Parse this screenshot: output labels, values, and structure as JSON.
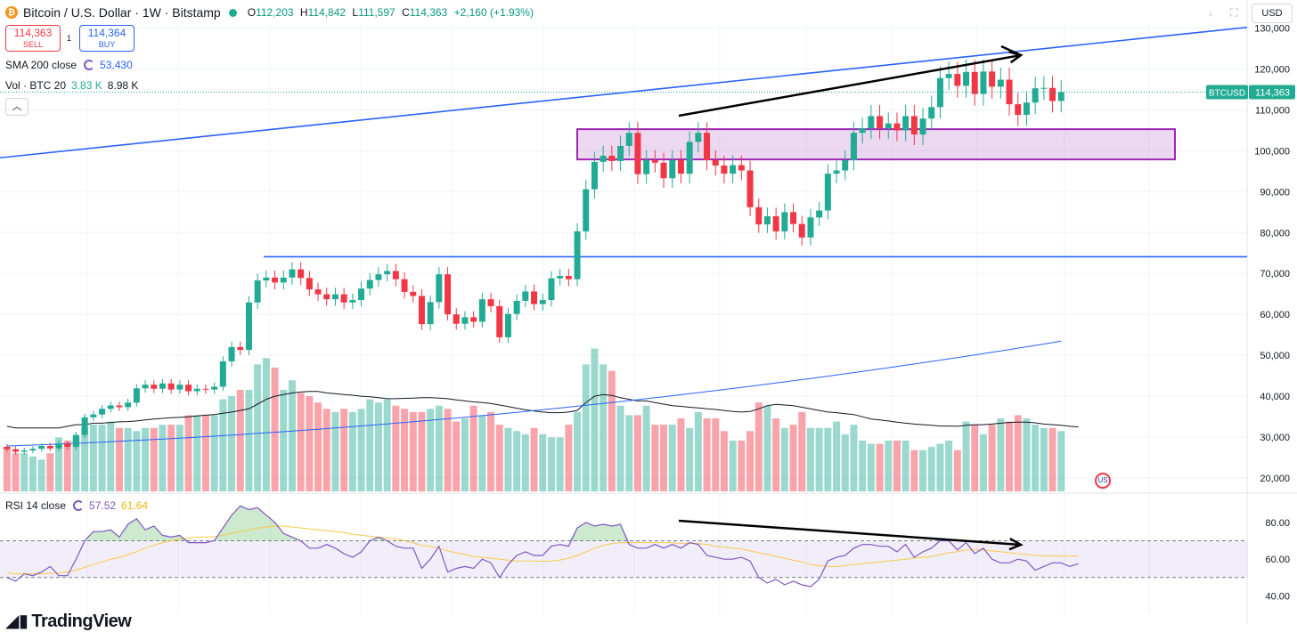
{
  "header": {
    "symbol_title": "Bitcoin / U.S. Dollar · 1W · Bitstamp",
    "open_label": "O",
    "open": "112,203",
    "high_label": "H",
    "high": "114,842",
    "low_label": "L",
    "low": "111,597",
    "close_label": "C",
    "close": "114,363",
    "change": "+2,160 (+1.93%)",
    "currency": "USD"
  },
  "trade": {
    "sell_price": "114,363",
    "sell_label": "SELL",
    "buy_price": "114,364",
    "buy_label": "BUY",
    "spread": "1"
  },
  "indicators": {
    "sma_label": "SMA 200 close",
    "sma_value": "53,430",
    "vol_label": "Vol · BTC 20",
    "vol_value": "3.83 K",
    "vol_ma_value": "8.98 K",
    "rsi_label": "RSI 14 close",
    "rsi_value": "57.52",
    "rsi_ma_value": "61.64"
  },
  "brand": {
    "name": "TradingView"
  },
  "colors": {
    "up": "#22ab94",
    "down": "#f23645",
    "trend": "#2962ff",
    "rsi": "#7e57c2",
    "rsi_ma": "#f7c948",
    "zone": "#9c27b0"
  },
  "chart_data": {
    "type": "candlestick",
    "title": "Bitcoin / U.S. Dollar · 1W · Bitstamp",
    "y_axis_ticks": [
      "130,000",
      "120,000",
      "110,000",
      "100,000",
      "90,000",
      "80,000",
      "70,000",
      "60,000",
      "50,000",
      "40,000",
      "30,000",
      "20,000"
    ],
    "price_range": [
      16700,
      130800
    ],
    "last_price_label": "BTCUSD",
    "last_price": "114,363",
    "candles": [
      {
        "o": 27600,
        "c": 27000
      },
      {
        "o": 27000,
        "c": 26400
      },
      {
        "o": 26400,
        "c": 26700
      },
      {
        "o": 26700,
        "c": 27100
      },
      {
        "o": 27100,
        "c": 27800
      },
      {
        "o": 27800,
        "c": 27200
      },
      {
        "o": 27200,
        "c": 28400
      },
      {
        "o": 28400,
        "c": 27600
      },
      {
        "o": 27600,
        "c": 30500
      },
      {
        "o": 30500,
        "c": 34800
      },
      {
        "o": 34800,
        "c": 35500
      },
      {
        "o": 35500,
        "c": 36900
      },
      {
        "o": 36900,
        "c": 37700
      },
      {
        "o": 37700,
        "c": 37300
      },
      {
        "o": 37300,
        "c": 38400
      },
      {
        "o": 38400,
        "c": 41900
      },
      {
        "o": 41900,
        "c": 42800
      },
      {
        "o": 42800,
        "c": 41800
      },
      {
        "o": 41800,
        "c": 43100
      },
      {
        "o": 43100,
        "c": 41600
      },
      {
        "o": 41600,
        "c": 42800
      },
      {
        "o": 42800,
        "c": 41200
      },
      {
        "o": 41200,
        "c": 41800
      },
      {
        "o": 41800,
        "c": 41600
      },
      {
        "o": 41600,
        "c": 42300
      },
      {
        "o": 42300,
        "c": 48500
      },
      {
        "o": 48500,
        "c": 52000
      },
      {
        "o": 52000,
        "c": 51300
      },
      {
        "o": 51300,
        "c": 62900
      },
      {
        "o": 62900,
        "c": 68300
      },
      {
        "o": 68300,
        "c": 69000
      },
      {
        "o": 69000,
        "c": 67800
      },
      {
        "o": 67800,
        "c": 69000
      },
      {
        "o": 69000,
        "c": 71000
      },
      {
        "o": 71000,
        "c": 68900
      },
      {
        "o": 68900,
        "c": 66100
      },
      {
        "o": 66100,
        "c": 64900
      },
      {
        "o": 64900,
        "c": 63700
      },
      {
        "o": 63700,
        "c": 64900
      },
      {
        "o": 64900,
        "c": 62900
      },
      {
        "o": 62900,
        "c": 63500
      },
      {
        "o": 63500,
        "c": 66300
      },
      {
        "o": 66300,
        "c": 68400
      },
      {
        "o": 68400,
        "c": 69800
      },
      {
        "o": 69800,
        "c": 70600
      },
      {
        "o": 70600,
        "c": 68600
      },
      {
        "o": 68600,
        "c": 65500
      },
      {
        "o": 65500,
        "c": 64500
      },
      {
        "o": 64500,
        "c": 57600
      },
      {
        "o": 57600,
        "c": 63000
      },
      {
        "o": 63000,
        "c": 69800
      },
      {
        "o": 69800,
        "c": 60000
      },
      {
        "o": 60000,
        "c": 57700
      },
      {
        "o": 57700,
        "c": 59300
      },
      {
        "o": 59300,
        "c": 58200
      },
      {
        "o": 58200,
        "c": 63700
      },
      {
        "o": 63700,
        "c": 62000
      },
      {
        "o": 62000,
        "c": 54400
      },
      {
        "o": 54400,
        "c": 60100
      },
      {
        "o": 60100,
        "c": 63300
      },
      {
        "o": 63300,
        "c": 65600
      },
      {
        "o": 65600,
        "c": 62500
      },
      {
        "o": 62500,
        "c": 63500
      },
      {
        "o": 63500,
        "c": 68800
      },
      {
        "o": 68800,
        "c": 69400
      },
      {
        "o": 69400,
        "c": 68600
      },
      {
        "o": 68600,
        "c": 80300
      },
      {
        "o": 80300,
        "c": 90600
      },
      {
        "o": 90600,
        "c": 97300
      },
      {
        "o": 97300,
        "c": 98800
      },
      {
        "o": 98800,
        "c": 97500
      },
      {
        "o": 97500,
        "c": 101200
      },
      {
        "o": 101200,
        "c": 104400
      },
      {
        "o": 104400,
        "c": 94300
      },
      {
        "o": 94300,
        "c": 97700
      },
      {
        "o": 97700,
        "c": 97100
      },
      {
        "o": 97100,
        "c": 93300
      },
      {
        "o": 93300,
        "c": 97700
      },
      {
        "o": 97700,
        "c": 94400
      },
      {
        "o": 94400,
        "c": 102200
      },
      {
        "o": 102200,
        "c": 104400
      },
      {
        "o": 104400,
        "c": 97700
      },
      {
        "o": 97700,
        "c": 96400
      },
      {
        "o": 96400,
        "c": 94400
      },
      {
        "o": 94400,
        "c": 96500
      },
      {
        "o": 96500,
        "c": 95200
      },
      {
        "o": 95200,
        "c": 86200
      },
      {
        "o": 86200,
        "c": 82000
      },
      {
        "o": 82000,
        "c": 84000
      },
      {
        "o": 84000,
        "c": 80300
      },
      {
        "o": 80300,
        "c": 85000
      },
      {
        "o": 85000,
        "c": 82100
      },
      {
        "o": 82100,
        "c": 78800
      },
      {
        "o": 78800,
        "c": 83700
      },
      {
        "o": 83700,
        "c": 85400
      },
      {
        "o": 85400,
        "c": 94400
      },
      {
        "o": 94400,
        "c": 95200
      },
      {
        "o": 95200,
        "c": 97700
      },
      {
        "o": 97700,
        "c": 104400
      },
      {
        "o": 104400,
        "c": 105500
      },
      {
        "o": 105500,
        "c": 108500
      },
      {
        "o": 108500,
        "c": 105500
      },
      {
        "o": 105500,
        "c": 106700
      },
      {
        "o": 106700,
        "c": 105000
      },
      {
        "o": 105000,
        "c": 108500
      },
      {
        "o": 108500,
        "c": 104000
      },
      {
        "o": 104000,
        "c": 107900
      },
      {
        "o": 107900,
        "c": 110700
      },
      {
        "o": 110700,
        "c": 117800
      },
      {
        "o": 117800,
        "c": 118800
      },
      {
        "o": 118800,
        "c": 115900
      },
      {
        "o": 115900,
        "c": 119300
      },
      {
        "o": 119300,
        "c": 113900
      },
      {
        "o": 113900,
        "c": 119400
      },
      {
        "o": 119400,
        "c": 115700
      },
      {
        "o": 115700,
        "c": 117400
      },
      {
        "o": 117400,
        "c": 111400
      },
      {
        "o": 111400,
        "c": 108800
      },
      {
        "o": 108800,
        "c": 111800
      },
      {
        "o": 111800,
        "c": 115300
      },
      {
        "o": 115300,
        "c": 115400
      },
      {
        "o": 115400,
        "c": 112200
      },
      {
        "o": 112200,
        "c": 114363
      }
    ],
    "volume_series": "relative weekly volume (same length as candles)",
    "volume": [
      14,
      12,
      12,
      11,
      10,
      12,
      17,
      16,
      17,
      20,
      21,
      21,
      22,
      20,
      20,
      19,
      20,
      20,
      21,
      21,
      21,
      24,
      24,
      24,
      24,
      29,
      30,
      32,
      32,
      40,
      42,
      39,
      32,
      35,
      31,
      30,
      28,
      26,
      25,
      26,
      25,
      26,
      29,
      28,
      29,
      27,
      26,
      25,
      25,
      26,
      27,
      26,
      22,
      23,
      27,
      24,
      25,
      21,
      20,
      19,
      18,
      20,
      18,
      17,
      17,
      21,
      25,
      40,
      45,
      40,
      38,
      27,
      24,
      24,
      27,
      21,
      21,
      21,
      23,
      20,
      25,
      23,
      23,
      19,
      16,
      16,
      19,
      28,
      27,
      23,
      20,
      21,
      25,
      20,
      20,
      20,
      22,
      18,
      21,
      16,
      15,
      15,
      16,
      16,
      16,
      13,
      13,
      14,
      15,
      16,
      13,
      22,
      21,
      18,
      21,
      23,
      22,
      24,
      23,
      21,
      20,
      20,
      19,
      20,
      21
    ],
    "volume_ma": [
      20.5,
      20,
      20,
      20,
      20,
      20,
      20,
      20.5,
      21,
      21,
      21.5,
      21.5,
      21.7,
      21.9,
      22,
      22.2,
      22.5,
      22.8,
      23,
      23.2,
      23.3,
      23.5,
      23.8,
      24,
      24.2,
      24.6,
      25,
      25.5,
      26,
      27.5,
      29,
      30,
      30.5,
      31,
      31.3,
      31.5,
      31.5,
      31,
      30.8,
      30.5,
      30.3,
      30,
      29.8,
      29.5,
      29.2,
      29.2,
      29.3,
      29.4,
      29.5,
      29.5,
      29.4,
      29.2,
      28.8,
      28.5,
      28.2,
      28,
      27.7,
      27.2,
      26.7,
      26.2,
      25.7,
      25.3,
      25,
      24.8,
      24.8,
      25,
      25.5,
      28,
      30,
      30.5,
      30.2,
      29.5,
      29,
      28.5,
      28.5,
      28,
      27.5,
      27,
      26.8,
      26.5,
      26.3,
      26,
      25.8,
      25.5,
      25.2,
      25,
      25.2,
      26,
      27,
      27.4,
      27.2,
      27,
      26.5,
      26,
      25.5,
      25,
      24.8,
      24.5,
      24.2,
      23.5,
      22.8,
      22.5,
      22.2,
      21.8,
      21.5,
      21.2,
      21,
      20.8,
      20.6,
      20.6,
      20.5,
      20.8,
      21,
      21,
      21.2,
      21.5,
      21.7,
      21.8,
      21.8,
      21.6,
      21.2,
      21,
      20.8,
      20.5,
      20.3
    ],
    "sma200": {
      "start": 27800,
      "end": 53430
    },
    "horizontal_support": 74100,
    "supply_zone": {
      "low": 97900,
      "high": 105300
    },
    "rsi": {
      "range": [
        30,
        95
      ],
      "ticks": [
        "80.00",
        "60.00",
        "40.00"
      ],
      "bands": [
        50,
        70
      ],
      "series": [
        50,
        48,
        52,
        51,
        53,
        56,
        51,
        51,
        60,
        70,
        75,
        75,
        76,
        72,
        79,
        82,
        76,
        78,
        73,
        72,
        73,
        69,
        69,
        69,
        70,
        77,
        84,
        89,
        87,
        88,
        84,
        80,
        74,
        72,
        70,
        66,
        66,
        68,
        66,
        63,
        61,
        64,
        70,
        72,
        70,
        67,
        66,
        66,
        55,
        60,
        67,
        53,
        55,
        56,
        55,
        60,
        58,
        50,
        57,
        62,
        64,
        62,
        62,
        67,
        68,
        67,
        77,
        80,
        78,
        79,
        78,
        79,
        68,
        66,
        66,
        68,
        66,
        68,
        66,
        69,
        68,
        62,
        61,
        60,
        60,
        61,
        59,
        50,
        47,
        49,
        46,
        48,
        46,
        45,
        49,
        59,
        61,
        62,
        66,
        68,
        68,
        67,
        67,
        64,
        68,
        61,
        64,
        66,
        70,
        70,
        65,
        69,
        63,
        66,
        60,
        58,
        58,
        60,
        59,
        54,
        56,
        58,
        58,
        56,
        57.5
      ],
      "ma": [
        52.5,
        52,
        52,
        52,
        52,
        52.3,
        52.5,
        53,
        54,
        55.5,
        57,
        58.5,
        60,
        61,
        62.5,
        64,
        66,
        67.5,
        69,
        70,
        71,
        71.5,
        72,
        72,
        72.2,
        73,
        74,
        75,
        76,
        77,
        77.5,
        78,
        78,
        77.5,
        77,
        76.5,
        76,
        75.5,
        75,
        74.5,
        73.5,
        73,
        72.5,
        72,
        71.5,
        71,
        70,
        69,
        67.5,
        67,
        66,
        64.5,
        63.5,
        62.5,
        61.5,
        61,
        60.5,
        60,
        59.5,
        59,
        59,
        59,
        58.8,
        59,
        59.5,
        60.5,
        62,
        64,
        66,
        67.5,
        68.5,
        69,
        69,
        69,
        69,
        69,
        69,
        69,
        68.5,
        68.5,
        68.5,
        68,
        67,
        66.5,
        66,
        65.5,
        64.5,
        63.5,
        62.5,
        61.5,
        60.5,
        59.5,
        58.5,
        57,
        56.5,
        56,
        56,
        56.5,
        57,
        57.5,
        58,
        58.5,
        59,
        59.5,
        60,
        60.5,
        61,
        61.5,
        62.5,
        63.5,
        64,
        65,
        65,
        65,
        64.5,
        64,
        63.5,
        63,
        62.5,
        62,
        61.8,
        61.7,
        61.6,
        61.6,
        61.64
      ]
    }
  }
}
